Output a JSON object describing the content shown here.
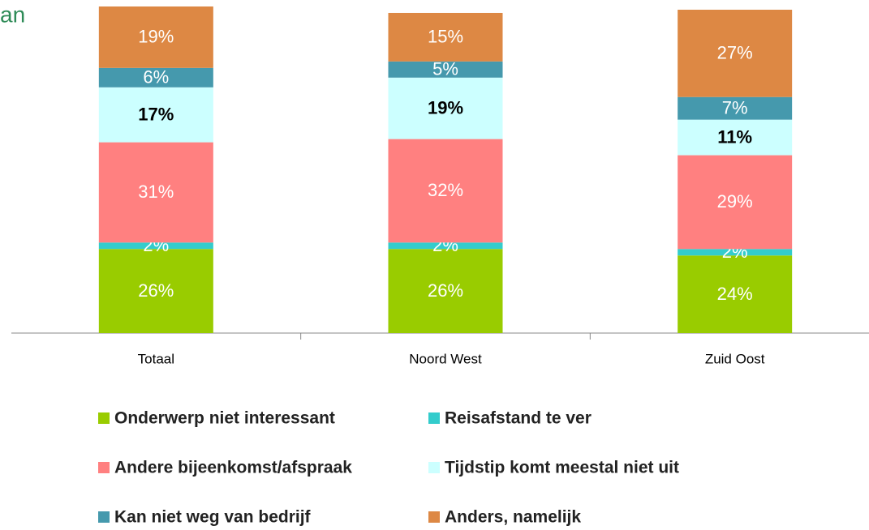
{
  "chart_data": {
    "type": "stacked_bar",
    "title": "an",
    "categories": [
      "Totaal",
      "Noord West",
      "Zuid Oost"
    ],
    "series": [
      {
        "name": "Onderwerp niet interessant",
        "color": "#99cc00",
        "label_color": "#ffffff",
        "values": [
          26,
          26,
          24
        ],
        "value_labels": [
          "26%",
          "26%",
          "24%"
        ]
      },
      {
        "name": "Reisafstand te ver",
        "color": "#33cccc",
        "label_color": "#ffffff",
        "values": [
          2,
          2,
          2
        ],
        "value_labels": [
          "2%",
          "2%",
          "2%"
        ]
      },
      {
        "name": "Andere bijeenkomst/afspraak",
        "color": "#ff8080",
        "label_color": "#ffffff",
        "values": [
          31,
          32,
          29
        ],
        "value_labels": [
          "31%",
          "32%",
          "29%"
        ]
      },
      {
        "name": "Tijdstip komt meestal niet uit",
        "color": "#ccffff",
        "label_color": "#000000",
        "values": [
          17,
          19,
          11
        ],
        "value_labels": [
          "17%",
          "19%",
          "11%"
        ]
      },
      {
        "name": "Kan niet weg van bedrijf",
        "color": "#4599ad",
        "label_color": "#ffffff",
        "values": [
          6,
          5,
          7
        ],
        "value_labels": [
          "6%",
          "5%",
          "7%"
        ]
      },
      {
        "name": "Anders, namelijk",
        "color": "#dd8844",
        "label_color": "#ffffff",
        "values": [
          19,
          15,
          27
        ],
        "value_labels": [
          "19%",
          "15%",
          "27%"
        ]
      }
    ]
  }
}
